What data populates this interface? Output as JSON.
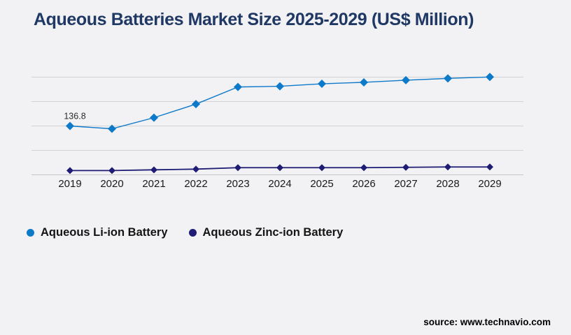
{
  "title": "Aqueous Batteries Market Size 2025-2029 (US$ Million)",
  "source": {
    "label": "source: www.technavio.com"
  },
  "colors": {
    "background": "#f2f2f4",
    "title_text": "#1f3864",
    "gridline": "#d2d2d5",
    "baseline": "#c6c6c9",
    "axis_text": "#1a1a1a",
    "annotation_text": "#2b2b2b",
    "li_ion_blue": "#0d79c9",
    "zinc_ion_navy": "#1e1c74"
  },
  "legend": {
    "items": [
      {
        "label": "Aqueous Li-ion Battery",
        "color": "#0d79c9"
      },
      {
        "label": "Aqueous Zinc-ion Battery",
        "color": "#1e1c74"
      }
    ]
  },
  "chart_data": {
    "type": "line",
    "title": "Aqueous Batteries Market Size 2025-2029 (US$ Million)",
    "categories": [
      "2019",
      "2020",
      "2021",
      "2022",
      "2023",
      "2024",
      "2025",
      "2026",
      "2027",
      "2028",
      "2029"
    ],
    "series": [
      {
        "name": "Aqueous Li-ion Battery",
        "color": "#0d79c9",
        "marker": "diamond",
        "values": [
          136.8,
          129,
          160,
          198,
          246,
          248,
          255,
          259,
          265,
          270,
          274
        ]
      },
      {
        "name": "Aqueous Zinc-ion Battery",
        "color": "#1e1c74",
        "marker": "diamond",
        "values": [
          12,
          12,
          14,
          16,
          20,
          20,
          20,
          20,
          21,
          22,
          22
        ]
      }
    ],
    "annotations": [
      {
        "series": 0,
        "index": 0,
        "text": "136.8"
      }
    ],
    "xlabel": "",
    "ylabel": "",
    "ylim": [
      0,
      273.6
    ],
    "grid": "horizontal",
    "gridline_count": 5,
    "y_axis_labels_visible": false,
    "legend_position": "bottom-left",
    "note": "Only the 2019 Li-ion point is labeled (136.8); other values estimated from gridlines at 68.4-unit intervals."
  }
}
